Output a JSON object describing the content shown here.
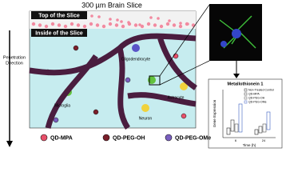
{
  "header": {
    "title": "300 µm Brain Slice"
  },
  "slice": {
    "top_label": "Top of the Slice",
    "inside_label": "Inside of the Slice"
  },
  "direction_label": [
    "Penetration",
    "Direction"
  ],
  "cells": {
    "oligodendrocyte": "Oligodendrocyte",
    "microglia": "Microglia",
    "astrocyte": "Astrocyte",
    "neuron": "Neuron"
  },
  "legend": [
    "QD-MPA",
    "QD-PEG-OH",
    "QD-PEG-OMe"
  ],
  "inset": {
    "title": "Metallothionein 1",
    "y_label": "Gene Expression",
    "x_label": "Time (h)",
    "legend": [
      "Non-Treated Control",
      "QD-MPA",
      "QD-PEG-OH",
      "QD-PEG-OMe"
    ],
    "x_categories": [
      "6",
      "24"
    ]
  }
}
